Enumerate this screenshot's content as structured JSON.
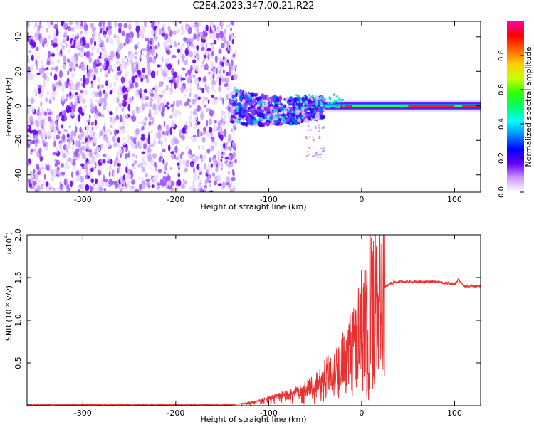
{
  "title": "C2E4.2023.347.00.21.R22",
  "colors": {
    "cmap": [
      "#ffffff",
      "#cc99ff",
      "#8a2be2",
      "#4b00ff",
      "#0044ff",
      "#00c8ff",
      "#00ff99",
      "#33ff00",
      "#ccff00",
      "#ffcc00",
      "#ff6600",
      "#ff0000",
      "#ff00aa"
    ],
    "snr_line": "#e83030"
  },
  "chart_data": [
    {
      "type": "heatmap",
      "xlabel": "Height of straight line (km)",
      "ylabel": "Frequency (Hz)",
      "xlim": [
        -360,
        128
      ],
      "ylim": [
        -50,
        49
      ],
      "xticks": [
        "-300",
        "-200",
        "-100",
        "0",
        "100"
      ],
      "yticks": [
        "-40",
        "-20",
        "0",
        "20",
        "40"
      ],
      "description_regions": {
        "noise_region_x": [
          -360,
          -140
        ],
        "turbulent_region_x": [
          -140,
          -40
        ],
        "stable_line_x": [
          -40,
          128
        ],
        "stable_line_freq": 0
      },
      "colorbar": {
        "label": "Normalized spectral amplitude",
        "range": [
          0,
          1
        ],
        "ticks": [
          "0.0",
          "0.2",
          "0.4",
          "0.6",
          "0.8"
        ]
      }
    },
    {
      "type": "line",
      "xlabel": "Height of straight line (km)",
      "ylabel": "SNR (10 * v/v)",
      "y_multiplier": "(x10",
      "y_multiplier_exp": "4",
      "y_multiplier_close": ")",
      "xlim": [
        -360,
        128
      ],
      "ylim": [
        0,
        2.0
      ],
      "xticks": [
        "-300",
        "-200",
        "-100",
        "0",
        "100"
      ],
      "yticks": [
        "0.5",
        "1.0",
        "1.5",
        "2.0"
      ],
      "series": [
        {
          "name": "SNR",
          "x": [
            -360,
            -140,
            -125,
            -110,
            -95,
            -80,
            -65,
            -50,
            -40,
            -30,
            -20,
            -10,
            0,
            5,
            8,
            10,
            15,
            20,
            30,
            40,
            60,
            80,
            100,
            104,
            110,
            128
          ],
          "y": [
            0.01,
            0.01,
            0.03,
            0.06,
            0.1,
            0.14,
            0.18,
            0.25,
            0.35,
            0.45,
            0.55,
            0.7,
            0.95,
            1.1,
            0.4,
            1.15,
            1.25,
            1.35,
            1.43,
            1.45,
            1.45,
            1.45,
            1.42,
            1.48,
            1.4,
            1.4
          ]
        }
      ],
      "spike": {
        "x": 9,
        "y": 2.0
      }
    }
  ]
}
